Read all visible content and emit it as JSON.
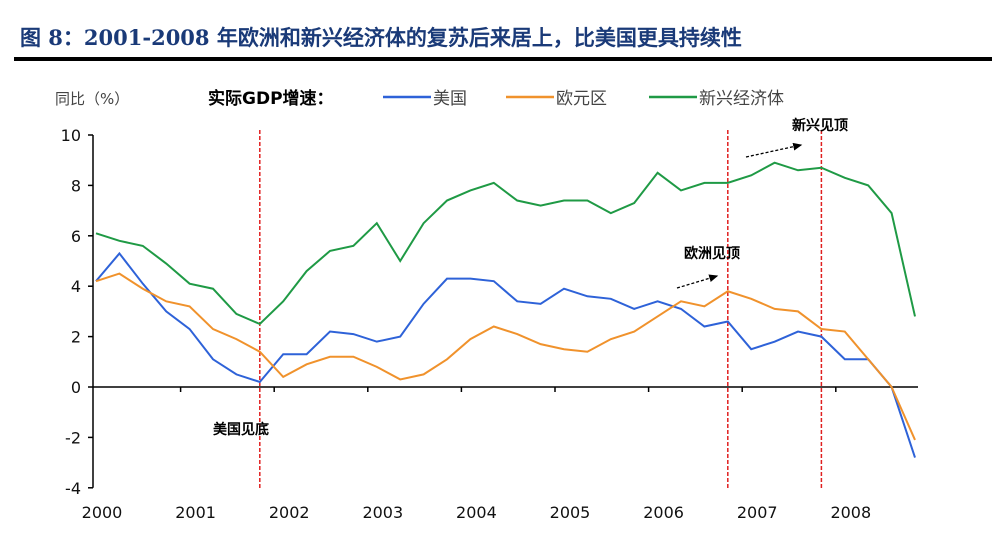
{
  "title": "图 8：2001-2008 年欧洲和新兴经济体的复苏后来居上，比美国更具持续性",
  "chart_data": {
    "type": "line",
    "ylabel": "同比（%）",
    "legend_title": "实际GDP增速：",
    "legend_placement": "top",
    "ylim": [
      -4,
      10
    ],
    "yticks": [
      "-4",
      "-2",
      "0",
      "2",
      "4",
      "6",
      "8",
      "10"
    ],
    "xticks": [
      "2000",
      "2001",
      "2002",
      "2003",
      "2004",
      "2005",
      "2006",
      "2007",
      "2008"
    ],
    "x_frequency": "quarterly, 2000Q1–2008Q4",
    "grid": false,
    "series": [
      {
        "name": "美国",
        "color": "#2e62d8",
        "values": [
          4.2,
          5.3,
          4.1,
          3.0,
          2.3,
          1.1,
          0.5,
          0.2,
          1.3,
          1.3,
          2.2,
          2.1,
          1.8,
          2.0,
          3.3,
          4.3,
          4.3,
          4.2,
          3.4,
          3.3,
          3.9,
          3.6,
          3.5,
          3.1,
          3.4,
          3.1,
          2.4,
          2.6,
          1.5,
          1.8,
          2.2,
          2.0,
          1.1,
          1.1,
          0.0,
          -2.8
        ]
      },
      {
        "name": "欧元区",
        "color": "#f0922c",
        "values": [
          4.2,
          4.5,
          3.9,
          3.4,
          3.2,
          2.3,
          1.9,
          1.4,
          0.4,
          0.9,
          1.2,
          1.2,
          0.8,
          0.3,
          0.5,
          1.1,
          1.9,
          2.4,
          2.1,
          1.7,
          1.5,
          1.4,
          1.9,
          2.2,
          2.8,
          3.4,
          3.2,
          3.8,
          3.5,
          3.1,
          3.0,
          2.3,
          2.2,
          1.1,
          0.0,
          -2.1
        ]
      },
      {
        "name": "新兴经济体",
        "color": "#1f9a45",
        "values": [
          6.1,
          5.8,
          5.6,
          4.9,
          4.1,
          3.9,
          2.9,
          2.5,
          3.4,
          4.6,
          5.4,
          5.6,
          6.5,
          5.0,
          6.5,
          7.4,
          7.8,
          8.1,
          7.4,
          7.2,
          7.4,
          7.4,
          6.9,
          7.3,
          8.5,
          7.8,
          8.1,
          8.1,
          8.4,
          8.9,
          8.6,
          8.7,
          8.3,
          8.0,
          6.9,
          2.8
        ]
      }
    ],
    "annotations": [
      {
        "text": "美国见底",
        "at_quarter": "2001Q4"
      },
      {
        "text": "欧洲见顶",
        "at_quarter": "2006Q4"
      },
      {
        "text": "新兴见顶",
        "at_quarter": "2007Q4"
      }
    ],
    "reference_line_color": "#e02020"
  }
}
